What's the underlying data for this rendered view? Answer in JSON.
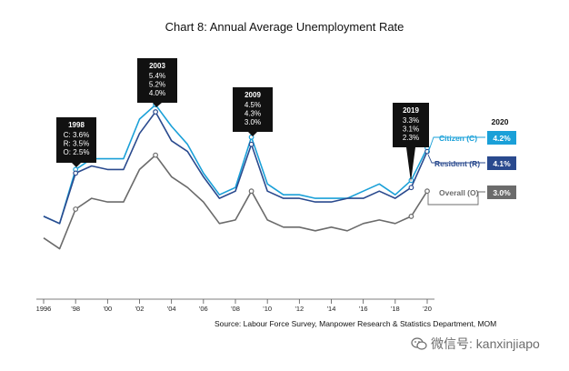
{
  "chart_data": {
    "type": "line",
    "title": "Chart 8: Annual Average Unemployment Rate",
    "x": [
      1996,
      1997,
      1998,
      1999,
      2000,
      2001,
      2002,
      2003,
      2004,
      2005,
      2006,
      2007,
      2008,
      2009,
      2010,
      2011,
      2012,
      2013,
      2014,
      2015,
      2016,
      2017,
      2018,
      2019,
      2020
    ],
    "x_tick_labels": [
      "1996",
      "'98",
      "'00",
      "'02",
      "'04",
      "'06",
      "'08",
      "'10",
      "'12",
      "'14",
      "'16",
      "'18",
      "'20"
    ],
    "x_tick_years": [
      1996,
      1998,
      2000,
      2002,
      2004,
      2006,
      2008,
      2010,
      2012,
      2014,
      2016,
      2018,
      2020
    ],
    "ylim": [
      0,
      6.5
    ],
    "series": [
      {
        "name": "Citizen (C)",
        "key": "citizen",
        "color": "#1aa0d8",
        "values": [
          2.3,
          2.1,
          3.6,
          3.9,
          3.9,
          3.9,
          5.0,
          5.4,
          4.8,
          4.3,
          3.5,
          2.9,
          3.1,
          4.5,
          3.2,
          2.9,
          2.9,
          2.8,
          2.8,
          2.8,
          3.0,
          3.2,
          2.9,
          3.3,
          4.2
        ]
      },
      {
        "name": "Resident (R)",
        "key": "resident",
        "color": "#2a4a8e",
        "values": [
          2.3,
          2.1,
          3.5,
          3.7,
          3.6,
          3.6,
          4.6,
          5.2,
          4.4,
          4.1,
          3.4,
          2.8,
          3.0,
          4.3,
          3.0,
          2.8,
          2.8,
          2.7,
          2.7,
          2.8,
          2.8,
          3.0,
          2.8,
          3.1,
          4.1
        ]
      },
      {
        "name": "Overall (O)",
        "key": "overall",
        "color": "#6b6b6b",
        "values": [
          1.7,
          1.4,
          2.5,
          2.8,
          2.7,
          2.7,
          3.6,
          4.0,
          3.4,
          3.1,
          2.7,
          2.1,
          2.2,
          3.0,
          2.2,
          2.0,
          2.0,
          1.9,
          2.0,
          1.9,
          2.1,
          2.2,
          2.1,
          2.3,
          3.0
        ]
      }
    ],
    "callouts": [
      {
        "year": "1998",
        "lines": [
          "C: 3.6%",
          "R: 3.5%",
          "O: 2.5%"
        ]
      },
      {
        "year": "2003",
        "lines": [
          "5.4%",
          "5.2%",
          "4.0%"
        ]
      },
      {
        "year": "2009",
        "lines": [
          "4.5%",
          "4.3%",
          "3.0%"
        ]
      },
      {
        "year": "2019",
        "lines": [
          "3.3%",
          "3.1%",
          "2.3%"
        ]
      }
    ],
    "legend": {
      "year": "2020",
      "items": [
        {
          "label": "Citizen (C)",
          "value": "4.2%",
          "color": "#1aa0d8"
        },
        {
          "label": "Resident (R)",
          "value": "4.1%",
          "color": "#2a4a8e"
        },
        {
          "label": "Overall (O)",
          "value": "3.0%",
          "color": "#6b6b6b"
        }
      ]
    }
  },
  "source": "Source: Labour Force Survey, Manpower Research & Statistics Department, MOM",
  "watermark": {
    "text": "微信号: kanxinjiapo",
    "icon": "wechat-icon"
  }
}
